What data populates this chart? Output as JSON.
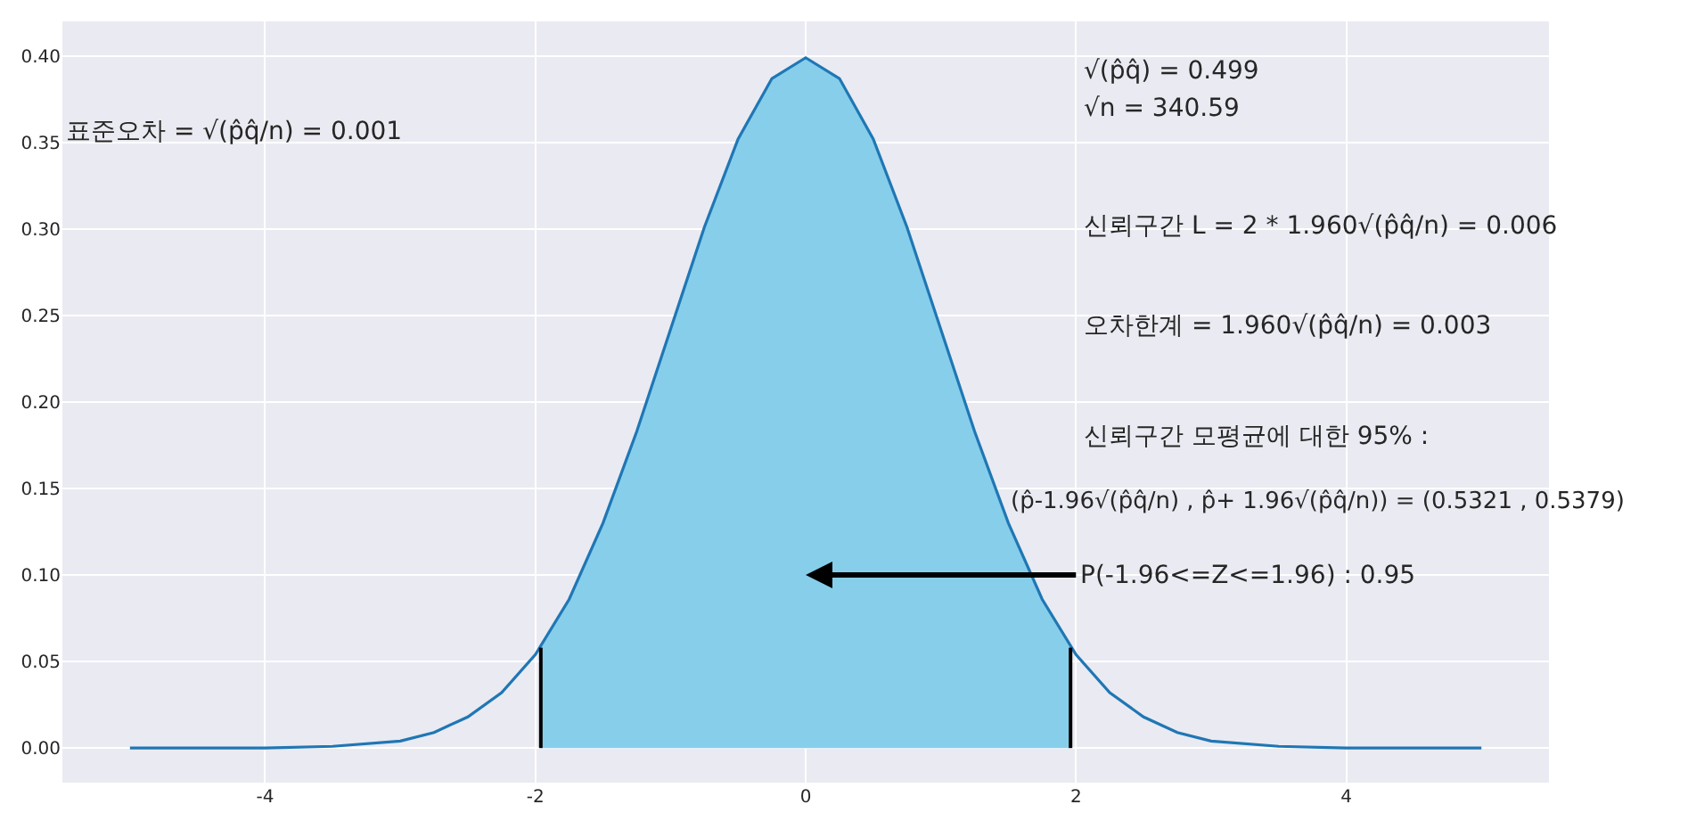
{
  "chart_data": {
    "type": "line",
    "annotations": [
      "표준오차 = √(p̂q̂/n) = 0.001",
      "√(p̂q̂) = 0.499",
      "√n = 340.59",
      "신뢰구간 L = 2 * 1.960√(p̂q̂/n) = 0.006",
      "오차한계 = 1.960√(p̂q̂/n) = 0.003",
      "신뢰구간 모평균에 대한 95% :",
      "(p̂-1.96√(p̂q̂/n) , p̂+ 1.96√(p̂q̂/n)) = (0.5321 , 0.5379)",
      "P(-1.96<=Z<=1.96) : 0.95"
    ],
    "series": [
      {
        "type": "area",
        "color": "#87ceeb",
        "x": [
          -1.96,
          -1.75,
          -1.5,
          -1.25,
          -1,
          -0.75,
          -0.5,
          -0.25,
          0,
          0.25,
          0.5,
          0.75,
          1,
          1.25,
          1.5,
          1.75,
          1.96
        ],
        "values": [
          0.058,
          0.086,
          0.13,
          0.183,
          0.242,
          0.301,
          0.352,
          0.387,
          0.399,
          0.387,
          0.352,
          0.301,
          0.242,
          0.183,
          0.13,
          0.086,
          0.058
        ]
      },
      {
        "color": "#1f77b4",
        "x": [
          -5,
          -4.5,
          -4,
          -3.5,
          -3,
          -2.75,
          -2.5,
          -2.25,
          -2,
          -1.75,
          -1.5,
          -1.25,
          -1,
          -0.75,
          -0.5,
          -0.25,
          0,
          0.25,
          0.5,
          0.75,
          1,
          1.25,
          1.5,
          1.75,
          2,
          2.25,
          2.5,
          2.75,
          3,
          3.5,
          4,
          4.5,
          5
        ],
        "values": [
          0,
          0,
          0,
          0.001,
          0.004,
          0.009,
          0.018,
          0.032,
          0.054,
          0.086,
          0.13,
          0.183,
          0.242,
          0.301,
          0.352,
          0.387,
          0.399,
          0.387,
          0.352,
          0.301,
          0.242,
          0.183,
          0.13,
          0.086,
          0.054,
          0.032,
          0.018,
          0.009,
          0.004,
          0.001,
          0,
          0,
          0
        ]
      },
      {
        "color": "#000000",
        "x": [
          -1.96,
          -1.96
        ],
        "values": [
          0,
          0.058
        ]
      },
      {
        "color": "#000000",
        "x": [
          1.96,
          1.96
        ],
        "values": [
          0,
          0.058
        ]
      }
    ],
    "xlim": [
      -5.5,
      5.5
    ],
    "xticks": [
      -4,
      -2,
      0,
      2,
      4
    ],
    "ylim": [
      -0.02,
      0.42
    ],
    "yticks": [
      {
        "value": 0,
        "label": "0.00"
      },
      {
        "value": 0.05,
        "label": "0.05"
      },
      {
        "value": 0.1,
        "label": "0.10"
      },
      {
        "value": 0.15,
        "label": "0.15"
      },
      {
        "value": 0.2,
        "label": "0.20"
      },
      {
        "value": 0.25,
        "label": "0.25"
      },
      {
        "value": 0.3,
        "label": "0.30"
      },
      {
        "value": 0.35,
        "label": "0.35"
      },
      {
        "value": 0.4,
        "label": "0.40"
      }
    ],
    "grid": true,
    "marker": "none",
    "line_style": "solid"
  }
}
